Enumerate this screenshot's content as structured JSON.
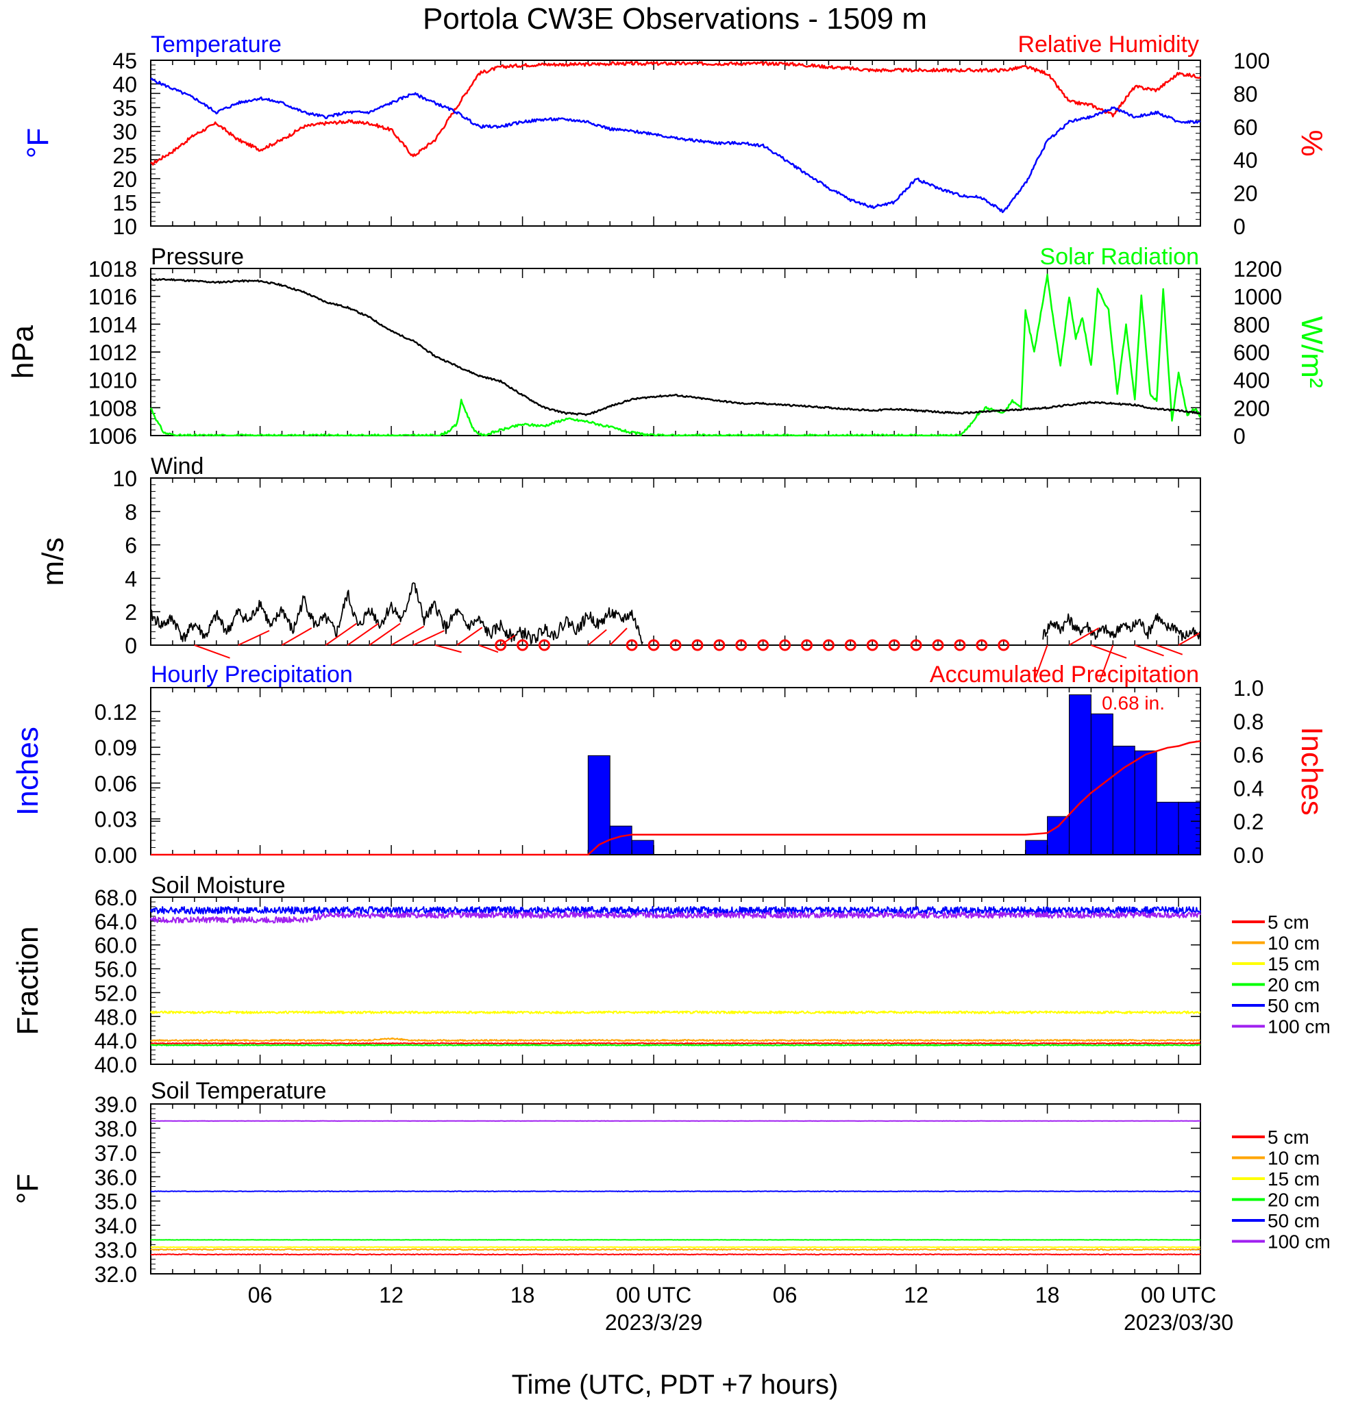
{
  "figure": {
    "title": "Portola CW3E Observations - 1509 m",
    "xlabel": "Time (UTC, PDT +7 hours)"
  },
  "time_axis": {
    "start_hour": 1,
    "end_hour": 49,
    "ticks": [
      {
        "hour": 6,
        "label": "06",
        "sub": ""
      },
      {
        "hour": 12,
        "label": "12",
        "sub": ""
      },
      {
        "hour": 18,
        "label": "18",
        "sub": ""
      },
      {
        "hour": 24,
        "label": "00 UTC",
        "sub": "2023/3/29"
      },
      {
        "hour": 30,
        "label": "06",
        "sub": ""
      },
      {
        "hour": 36,
        "label": "12",
        "sub": ""
      },
      {
        "hour": 42,
        "label": "18",
        "sub": ""
      },
      {
        "hour": 48,
        "label": "00 UTC",
        "sub": "2023/03/30"
      }
    ]
  },
  "colors": {
    "temperature": "#0000ff",
    "humidity": "#ff0000",
    "pressure": "#000000",
    "solar": "#00ff00",
    "wind": "#000000",
    "barb": "#ff0000",
    "hourly_precip": "#0000ff",
    "accum_precip": "#ff0000",
    "5 cm": "#ff0000",
    "10 cm": "#ffa500",
    "15 cm": "#ffff00",
    "20 cm": "#00ff00",
    "50 cm": "#0000ff",
    "100 cm": "#a020f0"
  },
  "chart_data": [
    {
      "id": "temp_rh",
      "type": "line",
      "left_title": "Temperature",
      "right_title": "Relative Humidity",
      "ylabel_left": "°F",
      "ylabel_right": "%",
      "ylim_left": [
        10,
        45
      ],
      "yticks_left": [
        10,
        15,
        20,
        25,
        30,
        35,
        40,
        45
      ],
      "ylim_right": [
        0,
        100
      ],
      "yticks_right": [
        0,
        20,
        40,
        60,
        80,
        100
      ],
      "series": [
        {
          "name": "Temperature",
          "axis": "left",
          "x": [
            1,
            2,
            3,
            4,
            5,
            6,
            7,
            8,
            9,
            10,
            11,
            12,
            13,
            14,
            15,
            16,
            17,
            18,
            19,
            20,
            21,
            22,
            23,
            24,
            25,
            26,
            27,
            28,
            29,
            30,
            31,
            32,
            33,
            34,
            35,
            36,
            37,
            38,
            39,
            40,
            41,
            42,
            43,
            44,
            45,
            46,
            47,
            48,
            49
          ],
          "values": [
            41,
            39,
            37,
            34,
            36,
            37,
            36,
            34,
            33,
            34,
            34,
            36,
            38,
            36,
            34,
            31,
            31,
            32,
            32.5,
            32.5,
            32,
            30.5,
            30,
            29.5,
            28.5,
            28,
            27.5,
            27.5,
            27,
            24,
            21,
            18,
            15.5,
            14,
            15,
            20,
            18,
            16.5,
            16,
            13,
            19,
            28,
            32,
            33,
            35,
            33,
            34,
            32,
            32
          ]
        },
        {
          "name": "Relative Humidity",
          "axis": "right",
          "x": [
            1,
            2,
            3,
            4,
            5,
            6,
            7,
            8,
            9,
            10,
            11,
            12,
            13,
            14,
            15,
            16,
            17,
            18,
            19,
            20,
            21,
            22,
            23,
            24,
            25,
            26,
            27,
            28,
            29,
            30,
            31,
            32,
            33,
            34,
            35,
            36,
            37,
            38,
            39,
            40,
            41,
            42,
            43,
            44,
            45,
            46,
            47,
            48,
            49
          ],
          "values": [
            37,
            45,
            55,
            62,
            52,
            46,
            52,
            60,
            62,
            63,
            62,
            58,
            42,
            52,
            72,
            92,
            96,
            97,
            97.5,
            97.5,
            97.5,
            98,
            98,
            98,
            98,
            98,
            98,
            98,
            98,
            98,
            97,
            96,
            95,
            94,
            94,
            94,
            94,
            94,
            94,
            94,
            96,
            92,
            75,
            73,
            67,
            84,
            82,
            92,
            90
          ]
        }
      ]
    },
    {
      "id": "pres_solar",
      "type": "line",
      "left_title": "Pressure",
      "right_title": "Solar Radiation",
      "ylabel_left": "hPa",
      "ylabel_right": "W/m²",
      "ylim_left": [
        1006,
        1018
      ],
      "yticks_left": [
        1006,
        1008,
        1010,
        1012,
        1014,
        1016,
        1018
      ],
      "ylim_right": [
        0,
        1200
      ],
      "yticks_right": [
        0,
        200,
        400,
        600,
        800,
        1000,
        1200
      ],
      "series": [
        {
          "name": "Pressure",
          "axis": "left",
          "x": [
            1,
            2,
            3,
            4,
            5,
            6,
            7,
            8,
            9,
            10,
            11,
            12,
            13,
            14,
            15,
            16,
            17,
            18,
            19,
            20,
            21,
            22,
            23,
            24,
            25,
            26,
            27,
            28,
            29,
            30,
            31,
            32,
            33,
            34,
            35,
            36,
            37,
            38,
            39,
            40,
            41,
            42,
            43,
            44,
            45,
            46,
            47,
            48,
            49
          ],
          "values": [
            1017.2,
            1017.2,
            1017.1,
            1017.0,
            1017.1,
            1017.1,
            1016.8,
            1016.3,
            1015.6,
            1015.2,
            1014.5,
            1013.5,
            1012.8,
            1011.7,
            1011.0,
            1010.3,
            1009.9,
            1008.9,
            1008.0,
            1007.6,
            1007.5,
            1008.1,
            1008.6,
            1008.8,
            1008.9,
            1008.7,
            1008.5,
            1008.3,
            1008.3,
            1008.2,
            1008.1,
            1008.0,
            1007.9,
            1007.8,
            1007.9,
            1007.8,
            1007.7,
            1007.6,
            1007.7,
            1007.8,
            1007.9,
            1008.0,
            1008.2,
            1008.4,
            1008.3,
            1008.2,
            1007.9,
            1007.8,
            1007.6
          ]
        },
        {
          "name": "Solar Radiation",
          "axis": "right",
          "x": [
            1,
            1.3,
            1.6,
            2.2,
            3,
            4,
            6,
            8,
            10,
            12,
            14,
            14.2,
            14.6,
            15,
            15.2,
            15.8,
            16.2,
            17,
            18,
            19,
            20,
            21,
            22,
            23,
            24,
            25,
            26,
            28,
            30,
            32,
            34,
            36,
            38,
            38.4,
            38.8,
            39.2,
            40,
            40.4,
            40.8,
            41,
            41.4,
            42,
            42.3,
            42.6,
            43,
            43.3,
            43.6,
            44,
            44.3,
            44.8,
            45.2,
            45.6,
            46,
            46.3,
            46.7,
            47,
            47.3,
            47.7,
            48,
            48.4,
            48.8,
            49
          ],
          "values": [
            200,
            100,
            20,
            0,
            0,
            0,
            0,
            0,
            0,
            0,
            0,
            0,
            30,
            80,
            250,
            30,
            0,
            40,
            80,
            70,
            120,
            100,
            60,
            20,
            0,
            0,
            0,
            0,
            0,
            0,
            0,
            0,
            0,
            60,
            150,
            200,
            160,
            250,
            200,
            900,
            600,
            1150,
            800,
            500,
            1000,
            700,
            850,
            500,
            1050,
            900,
            300,
            800,
            250,
            1000,
            300,
            250,
            1050,
            100,
            450,
            150,
            200,
            130
          ]
        }
      ]
    },
    {
      "id": "wind",
      "type": "line",
      "left_title": "Wind",
      "ylabel_left": "m/s",
      "ylim_left": [
        0,
        10
      ],
      "yticks_left": [
        0,
        2,
        4,
        6,
        8,
        10
      ],
      "series": [
        {
          "name": "Wind",
          "axis": "left",
          "x": [
            1,
            1.5,
            2,
            2.5,
            3,
            3.5,
            4,
            4.5,
            5,
            5.5,
            6,
            6.5,
            7,
            7.5,
            8,
            8.5,
            9,
            9.5,
            10,
            10.5,
            11,
            11.5,
            12,
            12.5,
            13,
            13.5,
            14,
            14.5,
            15,
            15.5,
            16,
            16.5,
            17,
            17.5,
            18,
            18.5,
            19,
            19.5,
            20,
            20.5,
            21,
            21.5,
            22,
            22.5,
            23,
            23.5
          ],
          "values": [
            1.8,
            1.2,
            1.6,
            0.4,
            1.3,
            0.5,
            1.8,
            0.8,
            2.0,
            1.4,
            2.6,
            1.0,
            2.2,
            0.8,
            2.8,
            1.2,
            1.6,
            0.7,
            3.1,
            1.0,
            2.2,
            1.2,
            2.4,
            1.4,
            3.8,
            1.5,
            2.4,
            1.0,
            2.0,
            1.1,
            1.5,
            0.6,
            1.2,
            0.5,
            0.8,
            0.3,
            1.0,
            0.6,
            1.5,
            0.9,
            1.8,
            1.2,
            2.0,
            1.5,
            1.9,
            0.2
          ]
        },
        {
          "name": "Wind",
          "axis": "left",
          "x": [
            41.8,
            42.2,
            42.6,
            43,
            43.4,
            43.8,
            44.2,
            44.6,
            45,
            45.4,
            45.8,
            46.2,
            46.6,
            47,
            47.4,
            47.8,
            48.2,
            48.6,
            49
          ],
          "values": [
            0.6,
            1.4,
            1.0,
            1.6,
            0.8,
            1.2,
            0.6,
            1.0,
            0.5,
            1.3,
            0.9,
            1.5,
            0.7,
            1.8,
            1.0,
            1.2,
            0.5,
            0.8,
            0.4
          ]
        }
      ],
      "barbs": {
        "x": [
          3,
          5,
          7,
          9,
          10,
          11,
          12,
          13,
          14,
          15,
          16,
          17,
          21,
          22
        ],
        "angle": [
          20,
          -25,
          -30,
          -35,
          -35,
          -35,
          -30,
          -25,
          15,
          -35,
          20,
          -35,
          -40,
          -45
        ],
        "len": [
          55,
          50,
          50,
          55,
          55,
          55,
          55,
          50,
          40,
          45,
          30,
          25,
          35,
          35
        ]
      },
      "calm_circles": [
        17,
        18,
        19,
        23,
        24,
        25,
        26,
        27,
        28,
        29,
        30,
        31,
        32,
        33,
        34,
        35,
        36,
        37,
        38,
        39,
        40
      ],
      "late_barbs": {
        "x": [
          42,
          43,
          44,
          45,
          46,
          47,
          48
        ],
        "angle": [
          110,
          -30,
          20,
          110,
          20,
          20,
          -30
        ],
        "len": [
          50,
          50,
          55,
          55,
          45,
          40,
          35
        ]
      }
    },
    {
      "id": "precip",
      "type": "bar",
      "left_title": "Hourly Precipitation",
      "right_title": "Accumulated Precipitation",
      "annotation": "0.68 in.",
      "ylabel_left": "Inches",
      "ylabel_right": "Inches",
      "ylim_left": [
        0,
        0.14
      ],
      "yticks_left": [
        0.0,
        0.03,
        0.06,
        0.09,
        0.12
      ],
      "ylim_right": [
        0,
        1.0
      ],
      "yticks_right": [
        0.0,
        0.2,
        0.4,
        0.6,
        0.8,
        1.0
      ],
      "bars": {
        "start_hours": [
          21,
          22,
          23,
          41,
          42,
          43,
          44,
          45,
          46,
          47,
          48
        ],
        "values": [
          0.083,
          0.024,
          0.012,
          0.012,
          0.032,
          0.134,
          0.118,
          0.091,
          0.087,
          0.044,
          0.044
        ]
      },
      "accumulated": {
        "x": [
          1,
          21,
          21.5,
          22,
          22.5,
          23,
          24,
          40,
          41,
          42,
          42.5,
          43,
          43.5,
          44,
          44.5,
          45,
          45.5,
          46,
          46.5,
          47,
          47.5,
          48,
          48.5,
          49
        ],
        "values": [
          0,
          0,
          0.06,
          0.09,
          0.11,
          0.12,
          0.12,
          0.12,
          0.12,
          0.13,
          0.17,
          0.24,
          0.31,
          0.37,
          0.42,
          0.47,
          0.52,
          0.56,
          0.6,
          0.62,
          0.64,
          0.65,
          0.67,
          0.68
        ]
      }
    },
    {
      "id": "soil_moisture",
      "type": "line",
      "left_title": "Soil Moisture",
      "ylabel_left": "Fraction",
      "ylim_left": [
        40,
        68
      ],
      "yticks_left": [
        40.0,
        44.0,
        48.0,
        52.0,
        56.0,
        60.0,
        64.0,
        68.0
      ],
      "tick_labels_left": [
        "40.0",
        "44.0",
        "48.0",
        "52.0",
        "56.0",
        "60.0",
        "64.0",
        "68.0"
      ],
      "series": [
        {
          "name": "5 cm",
          "x": [
            1,
            49
          ],
          "values": [
            43.5,
            43.5
          ]
        },
        {
          "name": "10 cm",
          "x": [
            1,
            11,
            12,
            13,
            49
          ],
          "values": [
            44.0,
            44.0,
            44.3,
            44.0,
            44.0
          ]
        },
        {
          "name": "15 cm",
          "x": [
            1,
            49
          ],
          "values": [
            48.7,
            48.7
          ]
        },
        {
          "name": "20 cm",
          "x": [
            1,
            49
          ],
          "values": [
            43.2,
            43.2
          ]
        },
        {
          "name": "50 cm",
          "x": [
            1,
            49
          ],
          "values": [
            65.8,
            65.8
          ]
        },
        {
          "name": "100 cm",
          "x": [
            1,
            8,
            9,
            49
          ],
          "values": [
            64.2,
            64.2,
            65.0,
            65.0
          ]
        }
      ]
    },
    {
      "id": "soil_temp",
      "type": "line",
      "left_title": "Soil Temperature",
      "ylabel_left": "°F",
      "ylim_left": [
        32,
        39
      ],
      "yticks_left": [
        32,
        33,
        34,
        35,
        36,
        37,
        38,
        39
      ],
      "tick_labels_left": [
        "32.0",
        "33.0",
        "34.0",
        "35.0",
        "36.0",
        "37.0",
        "38.0",
        "39.0"
      ],
      "series": [
        {
          "name": "5 cm",
          "x": [
            1,
            49
          ],
          "values": [
            32.8,
            32.8
          ]
        },
        {
          "name": "10 cm",
          "x": [
            1,
            49
          ],
          "values": [
            33.0,
            33.0
          ]
        },
        {
          "name": "15 cm",
          "x": [
            1,
            49
          ],
          "values": [
            33.1,
            33.1
          ]
        },
        {
          "name": "20 cm",
          "x": [
            1,
            49
          ],
          "values": [
            33.4,
            33.4
          ]
        },
        {
          "name": "50 cm",
          "x": [
            1,
            49
          ],
          "values": [
            35.4,
            35.4
          ]
        },
        {
          "name": "100 cm",
          "x": [
            1,
            49
          ],
          "values": [
            38.3,
            38.3
          ]
        }
      ]
    }
  ],
  "legend": {
    "labels": [
      "5 cm",
      "10 cm",
      "15 cm",
      "20 cm",
      "50 cm",
      "100 cm"
    ]
  }
}
